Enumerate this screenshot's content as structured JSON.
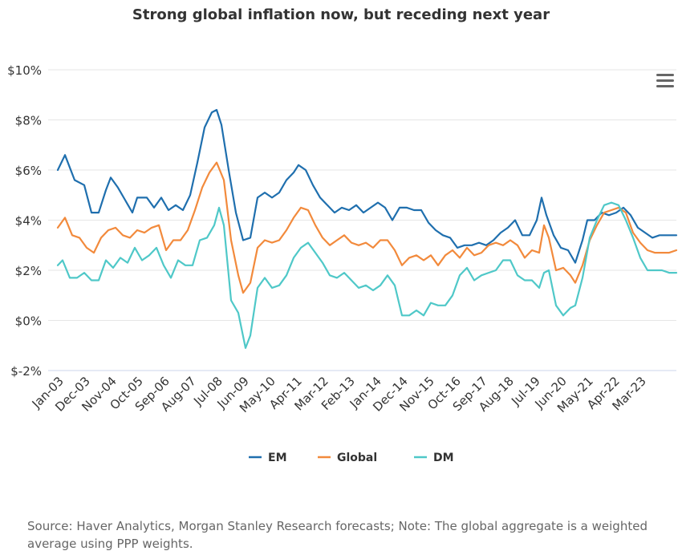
{
  "title": "Strong global inflation now, but receding next year",
  "source": "Source: Haver Analytics, Morgan Stanley Research forecasts; Note: The global aggregate is a weighted average using PPP weights.",
  "menu_icon": "hamburger-menu-icon",
  "colors": {
    "EM": "#1f6fae",
    "Global": "#f28a3c",
    "DM": "#4fc8c8",
    "grid": "#e6e6e6",
    "axis": "#ccd6eb"
  },
  "chart_data": {
    "type": "line",
    "ylim": [
      -2,
      10
    ],
    "yticks": [
      -2,
      0,
      2,
      4,
      6,
      8,
      10
    ],
    "ytick_labels": [
      "$-2%",
      "$0%",
      "$2%",
      "$4%",
      "$6%",
      "$8%",
      "$10%"
    ],
    "x_range": [
      "2003-01",
      "2024-06"
    ],
    "xtick_labels": [
      "Jan-03",
      "Dec-03",
      "Nov-04",
      "Oct-05",
      "Sep-06",
      "Aug-07",
      "Jul-08",
      "Jun-09",
      "May-10",
      "Apr-11",
      "Mar-12",
      "Feb-13",
      "Jan-14",
      "Dec-14",
      "Nov-15",
      "Oct-16",
      "Sep-17",
      "Aug-18",
      "Jul-19",
      "Jun-20",
      "May-21",
      "Apr-22",
      "Mar-23"
    ],
    "legend_position": "bottom-center",
    "series": [
      {
        "name": "EM",
        "points": [
          [
            "2003-01",
            6.0
          ],
          [
            "2003-04",
            6.6
          ],
          [
            "2003-08",
            5.6
          ],
          [
            "2003-12",
            5.4
          ],
          [
            "2004-03",
            4.3
          ],
          [
            "2004-06",
            4.3
          ],
          [
            "2004-09",
            5.2
          ],
          [
            "2004-11",
            5.7
          ],
          [
            "2005-02",
            5.3
          ],
          [
            "2005-05",
            4.8
          ],
          [
            "2005-08",
            4.3
          ],
          [
            "2005-10",
            4.9
          ],
          [
            "2006-02",
            4.9
          ],
          [
            "2006-05",
            4.5
          ],
          [
            "2006-08",
            4.9
          ],
          [
            "2006-11",
            4.4
          ],
          [
            "2007-02",
            4.6
          ],
          [
            "2007-05",
            4.4
          ],
          [
            "2007-08",
            5.0
          ],
          [
            "2007-11",
            6.3
          ],
          [
            "2008-02",
            7.7
          ],
          [
            "2008-05",
            8.3
          ],
          [
            "2008-07",
            8.4
          ],
          [
            "2008-09",
            7.8
          ],
          [
            "2008-12",
            6.0
          ],
          [
            "2009-03",
            4.3
          ],
          [
            "2009-06",
            3.2
          ],
          [
            "2009-09",
            3.3
          ],
          [
            "2009-12",
            4.9
          ],
          [
            "2010-03",
            5.1
          ],
          [
            "2010-06",
            4.9
          ],
          [
            "2010-09",
            5.1
          ],
          [
            "2010-12",
            5.6
          ],
          [
            "2011-03",
            5.9
          ],
          [
            "2011-05",
            6.2
          ],
          [
            "2011-08",
            6.0
          ],
          [
            "2011-11",
            5.4
          ],
          [
            "2012-02",
            4.9
          ],
          [
            "2012-05",
            4.6
          ],
          [
            "2012-08",
            4.3
          ],
          [
            "2012-11",
            4.5
          ],
          [
            "2013-02",
            4.4
          ],
          [
            "2013-05",
            4.6
          ],
          [
            "2013-08",
            4.3
          ],
          [
            "2013-11",
            4.5
          ],
          [
            "2014-02",
            4.7
          ],
          [
            "2014-05",
            4.5
          ],
          [
            "2014-08",
            4.0
          ],
          [
            "2014-11",
            4.5
          ],
          [
            "2015-02",
            4.5
          ],
          [
            "2015-05",
            4.4
          ],
          [
            "2015-08",
            4.4
          ],
          [
            "2015-11",
            3.9
          ],
          [
            "2016-02",
            3.6
          ],
          [
            "2016-05",
            3.4
          ],
          [
            "2016-08",
            3.3
          ],
          [
            "2016-11",
            2.9
          ],
          [
            "2017-02",
            3.0
          ],
          [
            "2017-05",
            3.0
          ],
          [
            "2017-08",
            3.1
          ],
          [
            "2017-11",
            3.0
          ],
          [
            "2018-02",
            3.2
          ],
          [
            "2018-05",
            3.5
          ],
          [
            "2018-08",
            3.7
          ],
          [
            "2018-11",
            4.0
          ],
          [
            "2019-02",
            3.4
          ],
          [
            "2019-05",
            3.4
          ],
          [
            "2019-08",
            4.0
          ],
          [
            "2019-10",
            4.9
          ],
          [
            "2019-12",
            4.2
          ],
          [
            "2020-03",
            3.4
          ],
          [
            "2020-06",
            2.9
          ],
          [
            "2020-09",
            2.8
          ],
          [
            "2020-12",
            2.3
          ],
          [
            "2021-03",
            3.2
          ],
          [
            "2021-05",
            4.0
          ],
          [
            "2021-08",
            4.0
          ],
          [
            "2021-11",
            4.3
          ],
          [
            "2022-02",
            4.2
          ],
          [
            "2022-05",
            4.3
          ],
          [
            "2022-08",
            4.5
          ],
          [
            "2022-11",
            4.2
          ],
          [
            "2023-02",
            3.7
          ],
          [
            "2023-05",
            3.5
          ],
          [
            "2023-08",
            3.3
          ],
          [
            "2023-11",
            3.4
          ],
          [
            "2024-03",
            3.4
          ],
          [
            "2024-06",
            3.4
          ]
        ]
      },
      {
        "name": "Global",
        "points": [
          [
            "2003-01",
            3.7
          ],
          [
            "2003-04",
            4.1
          ],
          [
            "2003-07",
            3.4
          ],
          [
            "2003-10",
            3.3
          ],
          [
            "2004-01",
            2.9
          ],
          [
            "2004-04",
            2.7
          ],
          [
            "2004-07",
            3.3
          ],
          [
            "2004-10",
            3.6
          ],
          [
            "2005-01",
            3.7
          ],
          [
            "2005-04",
            3.4
          ],
          [
            "2005-07",
            3.3
          ],
          [
            "2005-10",
            3.6
          ],
          [
            "2006-01",
            3.5
          ],
          [
            "2006-04",
            3.7
          ],
          [
            "2006-07",
            3.8
          ],
          [
            "2006-10",
            2.8
          ],
          [
            "2007-01",
            3.2
          ],
          [
            "2007-04",
            3.2
          ],
          [
            "2007-07",
            3.6
          ],
          [
            "2007-10",
            4.4
          ],
          [
            "2008-01",
            5.3
          ],
          [
            "2008-04",
            5.9
          ],
          [
            "2008-07",
            6.3
          ],
          [
            "2008-10",
            5.6
          ],
          [
            "2009-01",
            3.2
          ],
          [
            "2009-04",
            1.8
          ],
          [
            "2009-06",
            1.1
          ],
          [
            "2009-09",
            1.5
          ],
          [
            "2009-12",
            2.9
          ],
          [
            "2010-03",
            3.2
          ],
          [
            "2010-06",
            3.1
          ],
          [
            "2010-09",
            3.2
          ],
          [
            "2010-12",
            3.6
          ],
          [
            "2011-03",
            4.1
          ],
          [
            "2011-06",
            4.5
          ],
          [
            "2011-09",
            4.4
          ],
          [
            "2011-12",
            3.8
          ],
          [
            "2012-03",
            3.3
          ],
          [
            "2012-06",
            3.0
          ],
          [
            "2012-09",
            3.2
          ],
          [
            "2012-12",
            3.4
          ],
          [
            "2013-03",
            3.1
          ],
          [
            "2013-06",
            3.0
          ],
          [
            "2013-09",
            3.1
          ],
          [
            "2013-12",
            2.9
          ],
          [
            "2014-03",
            3.2
          ],
          [
            "2014-06",
            3.2
          ],
          [
            "2014-09",
            2.8
          ],
          [
            "2014-12",
            2.2
          ],
          [
            "2015-03",
            2.5
          ],
          [
            "2015-06",
            2.6
          ],
          [
            "2015-09",
            2.4
          ],
          [
            "2015-12",
            2.6
          ],
          [
            "2016-03",
            2.2
          ],
          [
            "2016-06",
            2.6
          ],
          [
            "2016-09",
            2.8
          ],
          [
            "2016-12",
            2.5
          ],
          [
            "2017-03",
            2.9
          ],
          [
            "2017-06",
            2.6
          ],
          [
            "2017-09",
            2.7
          ],
          [
            "2017-12",
            3.0
          ],
          [
            "2018-03",
            3.1
          ],
          [
            "2018-06",
            3.0
          ],
          [
            "2018-09",
            3.2
          ],
          [
            "2018-12",
            3.0
          ],
          [
            "2019-03",
            2.5
          ],
          [
            "2019-06",
            2.8
          ],
          [
            "2019-09",
            2.7
          ],
          [
            "2019-11",
            3.8
          ],
          [
            "2020-01",
            3.3
          ],
          [
            "2020-04",
            2.0
          ],
          [
            "2020-07",
            2.1
          ],
          [
            "2020-10",
            1.8
          ],
          [
            "2020-12",
            1.5
          ],
          [
            "2021-03",
            2.2
          ],
          [
            "2021-06",
            3.2
          ],
          [
            "2021-09",
            3.8
          ],
          [
            "2021-12",
            4.3
          ],
          [
            "2022-03",
            4.4
          ],
          [
            "2022-06",
            4.5
          ],
          [
            "2022-09",
            4.3
          ],
          [
            "2022-12",
            3.5
          ],
          [
            "2023-03",
            3.1
          ],
          [
            "2023-06",
            2.8
          ],
          [
            "2023-09",
            2.7
          ],
          [
            "2023-12",
            2.7
          ],
          [
            "2024-03",
            2.7
          ],
          [
            "2024-06",
            2.8
          ]
        ]
      },
      {
        "name": "DM",
        "points": [
          [
            "2003-01",
            2.2
          ],
          [
            "2003-03",
            2.4
          ],
          [
            "2003-06",
            1.7
          ],
          [
            "2003-09",
            1.7
          ],
          [
            "2003-12",
            1.9
          ],
          [
            "2004-03",
            1.6
          ],
          [
            "2004-06",
            1.6
          ],
          [
            "2004-09",
            2.4
          ],
          [
            "2004-12",
            2.1
          ],
          [
            "2005-03",
            2.5
          ],
          [
            "2005-06",
            2.3
          ],
          [
            "2005-09",
            2.9
          ],
          [
            "2005-12",
            2.4
          ],
          [
            "2006-03",
            2.6
          ],
          [
            "2006-06",
            2.9
          ],
          [
            "2006-09",
            2.2
          ],
          [
            "2006-12",
            1.7
          ],
          [
            "2007-03",
            2.4
          ],
          [
            "2007-06",
            2.2
          ],
          [
            "2007-09",
            2.2
          ],
          [
            "2007-12",
            3.2
          ],
          [
            "2008-03",
            3.3
          ],
          [
            "2008-06",
            3.8
          ],
          [
            "2008-08",
            4.5
          ],
          [
            "2008-10",
            3.8
          ],
          [
            "2009-01",
            0.8
          ],
          [
            "2009-04",
            0.3
          ],
          [
            "2009-07",
            -1.1
          ],
          [
            "2009-09",
            -0.6
          ],
          [
            "2009-12",
            1.3
          ],
          [
            "2010-03",
            1.7
          ],
          [
            "2010-06",
            1.3
          ],
          [
            "2010-09",
            1.4
          ],
          [
            "2010-12",
            1.8
          ],
          [
            "2011-03",
            2.5
          ],
          [
            "2011-06",
            2.9
          ],
          [
            "2011-09",
            3.1
          ],
          [
            "2011-12",
            2.7
          ],
          [
            "2012-03",
            2.3
          ],
          [
            "2012-06",
            1.8
          ],
          [
            "2012-09",
            1.7
          ],
          [
            "2012-12",
            1.9
          ],
          [
            "2013-03",
            1.6
          ],
          [
            "2013-06",
            1.3
          ],
          [
            "2013-09",
            1.4
          ],
          [
            "2013-12",
            1.2
          ],
          [
            "2014-03",
            1.4
          ],
          [
            "2014-06",
            1.8
          ],
          [
            "2014-09",
            1.4
          ],
          [
            "2014-12",
            0.2
          ],
          [
            "2015-03",
            0.2
          ],
          [
            "2015-06",
            0.4
          ],
          [
            "2015-09",
            0.2
          ],
          [
            "2015-12",
            0.7
          ],
          [
            "2016-03",
            0.6
          ],
          [
            "2016-06",
            0.6
          ],
          [
            "2016-09",
            1.0
          ],
          [
            "2016-12",
            1.8
          ],
          [
            "2017-03",
            2.1
          ],
          [
            "2017-06",
            1.6
          ],
          [
            "2017-09",
            1.8
          ],
          [
            "2017-12",
            1.9
          ],
          [
            "2018-03",
            2.0
          ],
          [
            "2018-06",
            2.4
          ],
          [
            "2018-09",
            2.4
          ],
          [
            "2018-12",
            1.8
          ],
          [
            "2019-03",
            1.6
          ],
          [
            "2019-06",
            1.6
          ],
          [
            "2019-09",
            1.3
          ],
          [
            "2019-11",
            1.9
          ],
          [
            "2020-01",
            2.0
          ],
          [
            "2020-04",
            0.6
          ],
          [
            "2020-07",
            0.2
          ],
          [
            "2020-10",
            0.5
          ],
          [
            "2020-12",
            0.6
          ],
          [
            "2021-03",
            1.7
          ],
          [
            "2021-06",
            3.3
          ],
          [
            "2021-09",
            4.0
          ],
          [
            "2021-12",
            4.6
          ],
          [
            "2022-03",
            4.7
          ],
          [
            "2022-06",
            4.6
          ],
          [
            "2022-09",
            4.0
          ],
          [
            "2022-12",
            3.3
          ],
          [
            "2023-03",
            2.5
          ],
          [
            "2023-06",
            2.0
          ],
          [
            "2023-09",
            2.0
          ],
          [
            "2023-12",
            2.0
          ],
          [
            "2024-03",
            1.9
          ],
          [
            "2024-06",
            1.9
          ]
        ]
      }
    ]
  }
}
